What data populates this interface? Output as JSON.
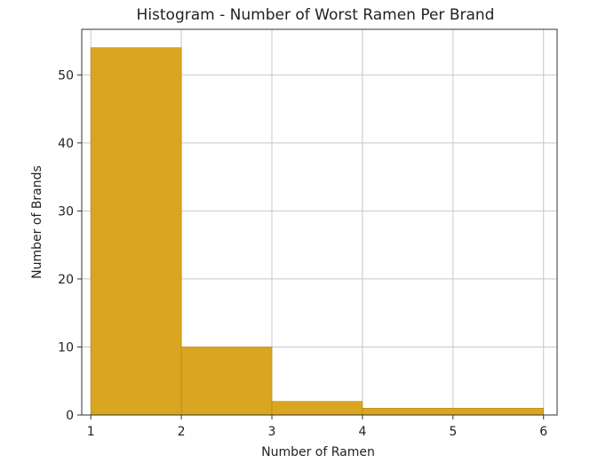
{
  "chart_data": {
    "type": "bar",
    "title": "Histogram - Number of Worst Ramen Per Brand",
    "xlabel": "Number of Ramen",
    "ylabel": "Number of Brands",
    "bins": [
      {
        "start": 1,
        "end": 2,
        "count": 54
      },
      {
        "start": 2,
        "end": 3,
        "count": 10
      },
      {
        "start": 3,
        "end": 4,
        "count": 2
      },
      {
        "start": 4,
        "end": 6,
        "count": 1
      }
    ],
    "xticks": [
      1,
      2,
      3,
      4,
      5,
      6
    ],
    "yticks": [
      0,
      10,
      20,
      30,
      40,
      50
    ],
    "xlim": [
      0.9,
      6.15
    ],
    "ylim": [
      0,
      56.7
    ],
    "grid": true,
    "bar_color": "#daa520",
    "edge_color": "#b8860b"
  }
}
